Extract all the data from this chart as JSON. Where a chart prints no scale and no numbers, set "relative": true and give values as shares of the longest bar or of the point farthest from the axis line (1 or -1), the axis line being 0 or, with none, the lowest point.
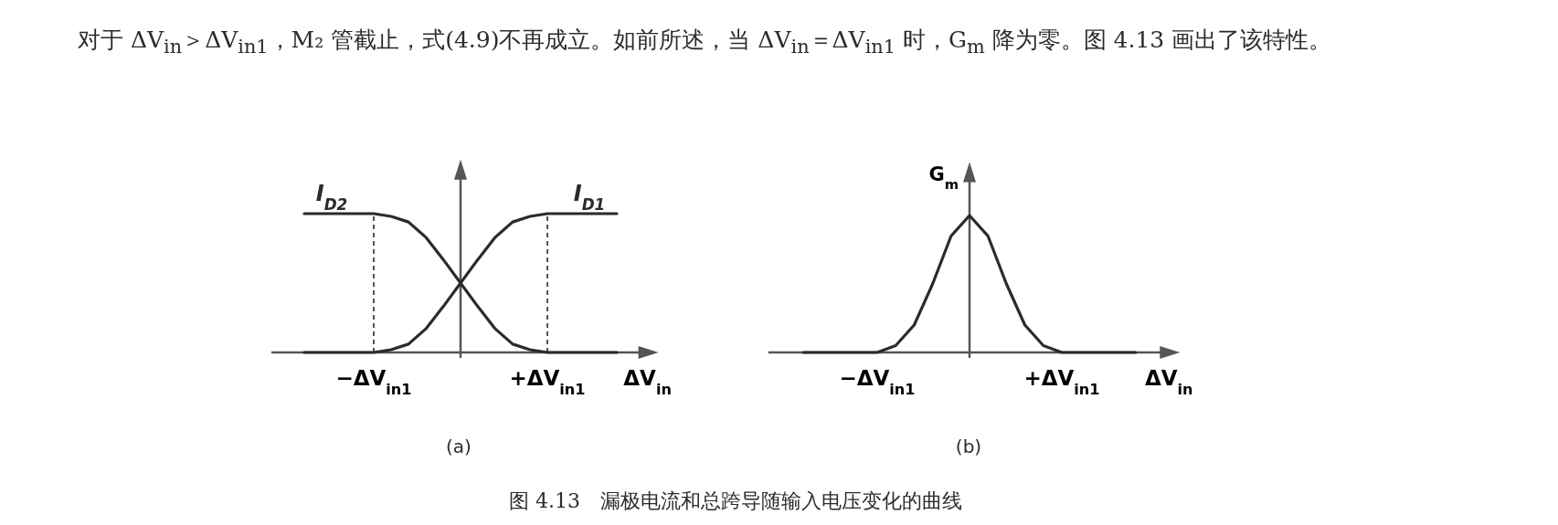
{
  "chart_data": [
    {
      "type": "line",
      "relative": true,
      "categories": [
        null,
        null,
        null,
        null,
        "−ΔV$_{in1}$",
        null,
        null,
        null,
        null,
        null,
        null,
        null,
        null,
        null,
        "+ΔV$_{in1}$",
        null,
        null,
        null,
        null
      ],
      "xlabel": "ΔV$_{in}$",
      "legend": false,
      "series": [
        {
          "name": "I$_{D2}$",
          "color": "#2b2b2b",
          "values": [
            1,
            1,
            1,
            1,
            1,
            0.98,
            0.94,
            0.83,
            0.67,
            0.5,
            0.33,
            0.17,
            0.06,
            0.02,
            0,
            0,
            0,
            0,
            0
          ]
        },
        {
          "name": "I$_{D1}$",
          "color": "#2b2b2b",
          "values": [
            0,
            0,
            0,
            0,
            0,
            0.02,
            0.06,
            0.17,
            0.33,
            0.5,
            0.67,
            0.83,
            0.94,
            0.98,
            1,
            1,
            1,
            1,
            1
          ]
        }
      ],
      "ref_lines": [
        {
          "axis": "x",
          "value": "−ΔV$_{in1}$",
          "line_style": "dashed",
          "color": "#2b2b2b"
        },
        {
          "axis": "x",
          "value": "+ΔV$_{in1}$",
          "line_style": "dashed",
          "color": "#2b2b2b"
        }
      ],
      "annotations": [
        "对于 ΔV$_{in}$＞ΔV$_{in1}$，M₂ 管截止，式(4.9)不再成立。如前所述，当 ΔV$_{in}$＝ΔV$_{in1}$ 时，G$_{m}$ 降为零。图 4.13 画出了该特性。",
        "(a)"
      ]
    },
    {
      "type": "line",
      "relative": true,
      "categories": [
        null,
        null,
        null,
        null,
        "−ΔV$_{in1}$",
        null,
        null,
        null,
        null,
        null,
        null,
        null,
        null,
        null,
        "+ΔV$_{in1}$",
        null,
        null,
        null,
        null
      ],
      "xlabel": "ΔV$_{in}$",
      "ylabel": "G$_{m}$",
      "legend": false,
      "series": [
        {
          "color": "#2b2b2b",
          "values": [
            0,
            0,
            0,
            0,
            0,
            0.05,
            0.2,
            0.5,
            0.85,
            1,
            0.85,
            0.5,
            0.2,
            0.05,
            0,
            0,
            0,
            0,
            0
          ]
        }
      ],
      "annotations": [
        "(b)",
        "图 4.13　漏极电流和总跨导随输入电压变化的曲线"
      ]
    }
  ]
}
